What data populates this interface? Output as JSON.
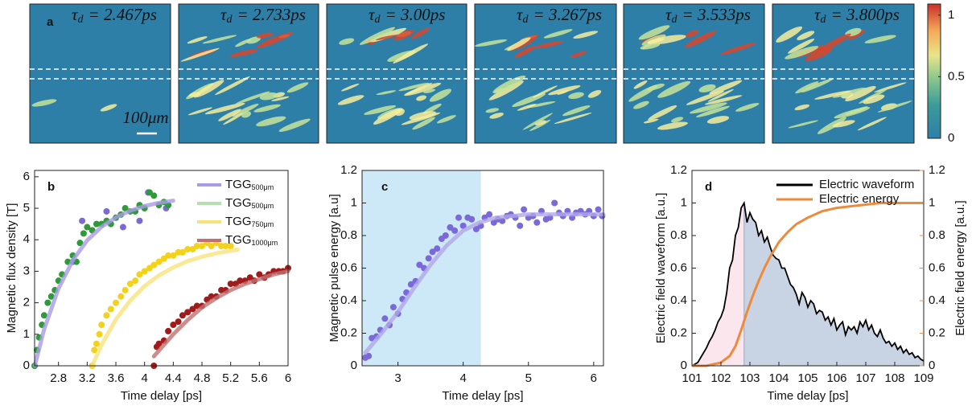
{
  "chart_data": [
    {
      "type": "image",
      "label": "a",
      "titles": [
        {
          "symbol": "τ",
          "sub": "d",
          "text": "= 2.467ps"
        },
        {
          "symbol": "τ",
          "sub": "d",
          "text": "= 2.733ps"
        },
        {
          "symbol": "τ",
          "sub": "d",
          "text": "= 3.00ps"
        },
        {
          "symbol": "τ",
          "sub": "d",
          "text": "= 3.267ps"
        },
        {
          "symbol": "τ",
          "sub": "d",
          "text": "= 3.533ps"
        },
        {
          "symbol": "τ",
          "sub": "d",
          "text": "= 3.800ps"
        }
      ],
      "scale_bar": "100μm",
      "clim": [
        0,
        1.09
      ],
      "cticks": [
        0,
        0.5,
        1
      ]
    },
    {
      "type": "scatter",
      "label": "b",
      "xlabel": "Time delay [ps]",
      "ylabel": "Magnetic flux density  [T]",
      "xlim": [
        2.467,
        6.0
      ],
      "xticks": [
        2.8,
        3.2,
        3.6,
        4,
        4.4,
        4.8,
        5.2,
        5.6,
        6
      ],
      "ylim": [
        0,
        6.2
      ],
      "yticks": [
        0,
        1,
        2,
        3,
        4,
        5,
        6
      ],
      "legend": "upper right",
      "series": [
        {
          "name": "TGG",
          "sub": "500μm",
          "color": "#a99be6",
          "marker_color": "#7b68d9",
          "x": [
            3.0,
            3.13,
            3.47,
            3.7,
            3.93,
            4.05,
            4.3
          ],
          "values": [
            3.3,
            4.6,
            4.9,
            4.4,
            4.6,
            5.5,
            5.0
          ],
          "fit_x": [
            2.47,
            2.6,
            2.8,
            3.0,
            3.2,
            3.4,
            3.6,
            3.8,
            4.0,
            4.2,
            4.4
          ],
          "fit_values": [
            0,
            1.16,
            2.45,
            3.35,
            3.98,
            4.41,
            4.71,
            4.92,
            5.07,
            5.17,
            5.24
          ]
        },
        {
          "name": "TGG",
          "sub": "500μm",
          "color": "#b5dfb0",
          "marker_color": "#2e9a3a",
          "x": [
            2.467,
            2.5,
            2.53,
            2.57,
            2.6,
            2.65,
            2.7,
            2.75,
            2.8,
            2.85,
            2.93,
            3.0,
            3.05,
            3.1,
            3.15,
            3.2,
            3.27,
            3.33,
            3.4,
            3.47,
            3.53,
            3.6,
            3.67,
            3.73,
            3.8,
            3.87,
            3.93,
            4.0,
            4.07,
            4.13,
            4.2,
            4.27,
            4.33
          ],
          "values": [
            0,
            0.5,
            0.9,
            1.3,
            1.6,
            2.0,
            2.2,
            2.4,
            2.7,
            2.9,
            3.3,
            3.5,
            3.3,
            3.9,
            4.2,
            4.4,
            4.3,
            4.5,
            4.5,
            4.6,
            4.5,
            4.7,
            4.8,
            5.0,
            4.9,
            4.9,
            5.1,
            5.0,
            5.5,
            5.4,
            5.1,
            5.2,
            5.1
          ]
        },
        {
          "name": "TGG",
          "sub": "750μm",
          "color": "#f7e27a",
          "marker_color": "#f2d21c",
          "x": [
            3.27,
            3.3,
            3.33,
            3.37,
            3.4,
            3.47,
            3.53,
            3.6,
            3.67,
            3.73,
            3.8,
            3.87,
            3.93,
            4.0,
            4.07,
            4.13,
            4.2,
            4.27,
            4.33,
            4.4,
            4.47,
            4.53,
            4.6,
            4.67,
            4.73,
            4.8,
            4.87,
            4.93,
            5.0,
            5.07,
            5.13,
            5.2
          ],
          "values": [
            0,
            0.5,
            0.7,
            1.0,
            1.3,
            1.6,
            1.8,
            2.0,
            2.2,
            2.4,
            2.6,
            2.7,
            2.9,
            3.0,
            3.1,
            3.2,
            3.3,
            3.4,
            3.5,
            3.5,
            3.6,
            3.6,
            3.7,
            3.7,
            3.8,
            3.8,
            3.9,
            3.8,
            3.9,
            3.8,
            3.8,
            3.8
          ],
          "fit_x": [
            3.27,
            3.4,
            3.6,
            3.8,
            4.0,
            4.2,
            4.4,
            4.6,
            4.8,
            5.0,
            5.2,
            5.3
          ],
          "fit_values": [
            0,
            0.66,
            1.47,
            2.07,
            2.53,
            2.87,
            3.12,
            3.32,
            3.46,
            3.57,
            3.65,
            3.69
          ]
        },
        {
          "name": "TGG",
          "sub": "1000μm",
          "color": "#c07070",
          "marker_color": "#a01c1c",
          "x": [
            4.13,
            4.17,
            4.2,
            4.27,
            4.33,
            4.4,
            4.47,
            4.53,
            4.6,
            4.67,
            4.73,
            4.8,
            4.87,
            4.93,
            5.0,
            5.07,
            5.13,
            5.2,
            5.27,
            5.33,
            5.4,
            5.47,
            5.53,
            5.6,
            5.67,
            5.73,
            5.8,
            5.87,
            5.93,
            6.0
          ],
          "values": [
            0,
            0.6,
            0.7,
            0.8,
            1.1,
            1.3,
            1.4,
            1.6,
            1.7,
            1.8,
            1.9,
            1.9,
            2.1,
            2.2,
            2.2,
            2.4,
            2.4,
            2.6,
            2.6,
            2.7,
            2.7,
            2.8,
            2.7,
            2.9,
            2.8,
            2.9,
            3.0,
            3.0,
            3.0,
            3.1
          ],
          "fit_x": [
            4.13,
            4.4,
            4.6,
            4.8,
            5.0,
            5.2,
            5.4,
            5.6,
            5.8,
            6.0
          ],
          "fit_values": [
            0.3,
            1.0,
            1.45,
            1.85,
            2.15,
            2.4,
            2.6,
            2.75,
            2.9,
            3.0
          ]
        }
      ]
    },
    {
      "type": "scatter",
      "label": "c",
      "xlabel": "Time delay [ps]",
      "ylabel": "Magnetic pulse energy [a.u]",
      "xlim": [
        2.45,
        6.15
      ],
      "xticks": [
        3,
        4,
        5,
        6
      ],
      "ylim": [
        0,
        1.2
      ],
      "yticks": [
        0,
        0.2,
        0.4,
        0.6,
        0.8,
        1,
        1.2
      ],
      "highlight_x": [
        2.45,
        4.27
      ],
      "highlight_color": "#cde8f6",
      "series": [
        {
          "color": "#b2a6ea",
          "marker_color": "#7b68d9",
          "x": [
            2.5,
            2.55,
            2.6,
            2.67,
            2.73,
            2.8,
            2.87,
            2.93,
            3.0,
            3.07,
            3.13,
            3.2,
            3.27,
            3.33,
            3.4,
            3.47,
            3.53,
            3.6,
            3.67,
            3.73,
            3.8,
            3.87,
            3.93,
            4.0,
            4.07,
            4.13,
            4.2,
            4.27,
            4.33,
            4.4,
            4.47,
            4.53,
            4.6,
            4.67,
            4.73,
            4.8,
            4.87,
            4.93,
            5.0,
            5.07,
            5.13,
            5.2,
            5.27,
            5.33,
            5.4,
            5.47,
            5.53,
            5.6,
            5.67,
            5.73,
            5.8,
            5.87,
            5.93,
            6.0,
            6.07,
            6.13
          ],
          "values": [
            0.05,
            0.06,
            0.17,
            0.18,
            0.22,
            0.29,
            0.25,
            0.36,
            0.32,
            0.41,
            0.45,
            0.5,
            0.52,
            0.62,
            0.6,
            0.66,
            0.7,
            0.72,
            0.78,
            0.8,
            0.85,
            0.83,
            0.91,
            0.86,
            0.91,
            0.9,
            0.84,
            0.86,
            0.91,
            0.93,
            0.88,
            0.9,
            0.89,
            0.92,
            0.93,
            0.91,
            0.86,
            0.96,
            0.91,
            0.92,
            0.88,
            0.95,
            0.9,
            0.91,
            1.0,
            0.94,
            0.92,
            0.95,
            0.91,
            0.94,
            0.95,
            0.93,
            0.95,
            0.92,
            0.96,
            0.92
          ],
          "fit_x": [
            2.5,
            2.75,
            3.0,
            3.25,
            3.5,
            3.75,
            4.0,
            4.25,
            4.5,
            5,
            5.5,
            6.15
          ],
          "fit_values": [
            0.08,
            0.2,
            0.33,
            0.48,
            0.62,
            0.74,
            0.83,
            0.88,
            0.91,
            0.93,
            0.93,
            0.93
          ]
        }
      ]
    },
    {
      "type": "line",
      "label": "d",
      "xlabel": "Time delay [ps]",
      "ylabel": "Electric field waveform [a.u.]",
      "y2label": "Electric field energy [a.u.]",
      "xlim": [
        101,
        109
      ],
      "xticks": [
        101,
        102,
        103,
        104,
        105,
        106,
        107,
        108,
        109
      ],
      "ylim": [
        0,
        1.2
      ],
      "yticks": [
        0,
        0.2,
        0.4,
        0.6,
        0.8,
        1,
        1.2
      ],
      "y2lim": [
        0,
        1.2
      ],
      "y2ticks": [
        0,
        0.2,
        0.4,
        0.6,
        0.8,
        1,
        1.2
      ],
      "y2color": "#ef8a3a",
      "split_x": 102.8,
      "fill_colors": [
        "#fbe6ee",
        "#c8d3e4"
      ],
      "legend": "upper right",
      "series": [
        {
          "name": "Electric waveform",
          "color": "#000000",
          "x": [
            101.0,
            101.1,
            101.2,
            101.3,
            101.4,
            101.5,
            101.6,
            101.7,
            101.8,
            101.9,
            102.0,
            102.1,
            102.2,
            102.3,
            102.4,
            102.5,
            102.6,
            102.7,
            102.8,
            102.9,
            103.0,
            103.1,
            103.2,
            103.3,
            103.4,
            103.5,
            103.6,
            103.7,
            103.8,
            103.9,
            104.0,
            104.1,
            104.2,
            104.3,
            104.4,
            104.5,
            104.6,
            104.7,
            104.8,
            104.9,
            105.0,
            105.1,
            105.2,
            105.3,
            105.4,
            105.5,
            105.6,
            105.7,
            105.8,
            105.9,
            106.0,
            106.1,
            106.2,
            106.3,
            106.4,
            106.5,
            106.6,
            106.7,
            106.8,
            106.9,
            107.0,
            107.1,
            107.2,
            107.3,
            107.4,
            107.5,
            107.6,
            107.7,
            107.8,
            107.9,
            108.0,
            108.1,
            108.2,
            108.3,
            108.4,
            108.5,
            108.6,
            108.7,
            108.8,
            108.9,
            109.0
          ],
          "values": [
            0,
            0.01,
            0.02,
            0.05,
            0.08,
            0.11,
            0.15,
            0.18,
            0.22,
            0.27,
            0.3,
            0.35,
            0.45,
            0.6,
            0.65,
            0.8,
            0.85,
            0.97,
            1.0,
            0.88,
            0.94,
            0.9,
            0.88,
            0.8,
            0.83,
            0.76,
            0.79,
            0.73,
            0.68,
            0.66,
            0.65,
            0.6,
            0.6,
            0.55,
            0.5,
            0.48,
            0.44,
            0.38,
            0.45,
            0.42,
            0.36,
            0.4,
            0.38,
            0.32,
            0.34,
            0.33,
            0.28,
            0.3,
            0.25,
            0.29,
            0.22,
            0.25,
            0.27,
            0.19,
            0.24,
            0.22,
            0.24,
            0.2,
            0.27,
            0.24,
            0.28,
            0.22,
            0.25,
            0.2,
            0.18,
            0.22,
            0.17,
            0.14,
            0.15,
            0.12,
            0.14,
            0.1,
            0.12,
            0.08,
            0.1,
            0.07,
            0.08,
            0.05,
            0.06,
            0.04,
            0.03
          ]
        },
        {
          "name": "Electric energy",
          "color": "#ef8a3a",
          "axis": "y2",
          "x": [
            101,
            101.5,
            102,
            102.3,
            102.5,
            102.7,
            102.9,
            103.1,
            103.3,
            103.5,
            103.7,
            104,
            104.3,
            104.6,
            105,
            105.5,
            106,
            106.5,
            107,
            107.5,
            108,
            108.5,
            109
          ],
          "values": [
            0,
            0,
            0.02,
            0.06,
            0.12,
            0.22,
            0.33,
            0.43,
            0.52,
            0.6,
            0.67,
            0.76,
            0.82,
            0.87,
            0.91,
            0.95,
            0.97,
            0.98,
            0.99,
            1.0,
            1.0,
            1.0,
            1.0
          ]
        }
      ]
    }
  ]
}
